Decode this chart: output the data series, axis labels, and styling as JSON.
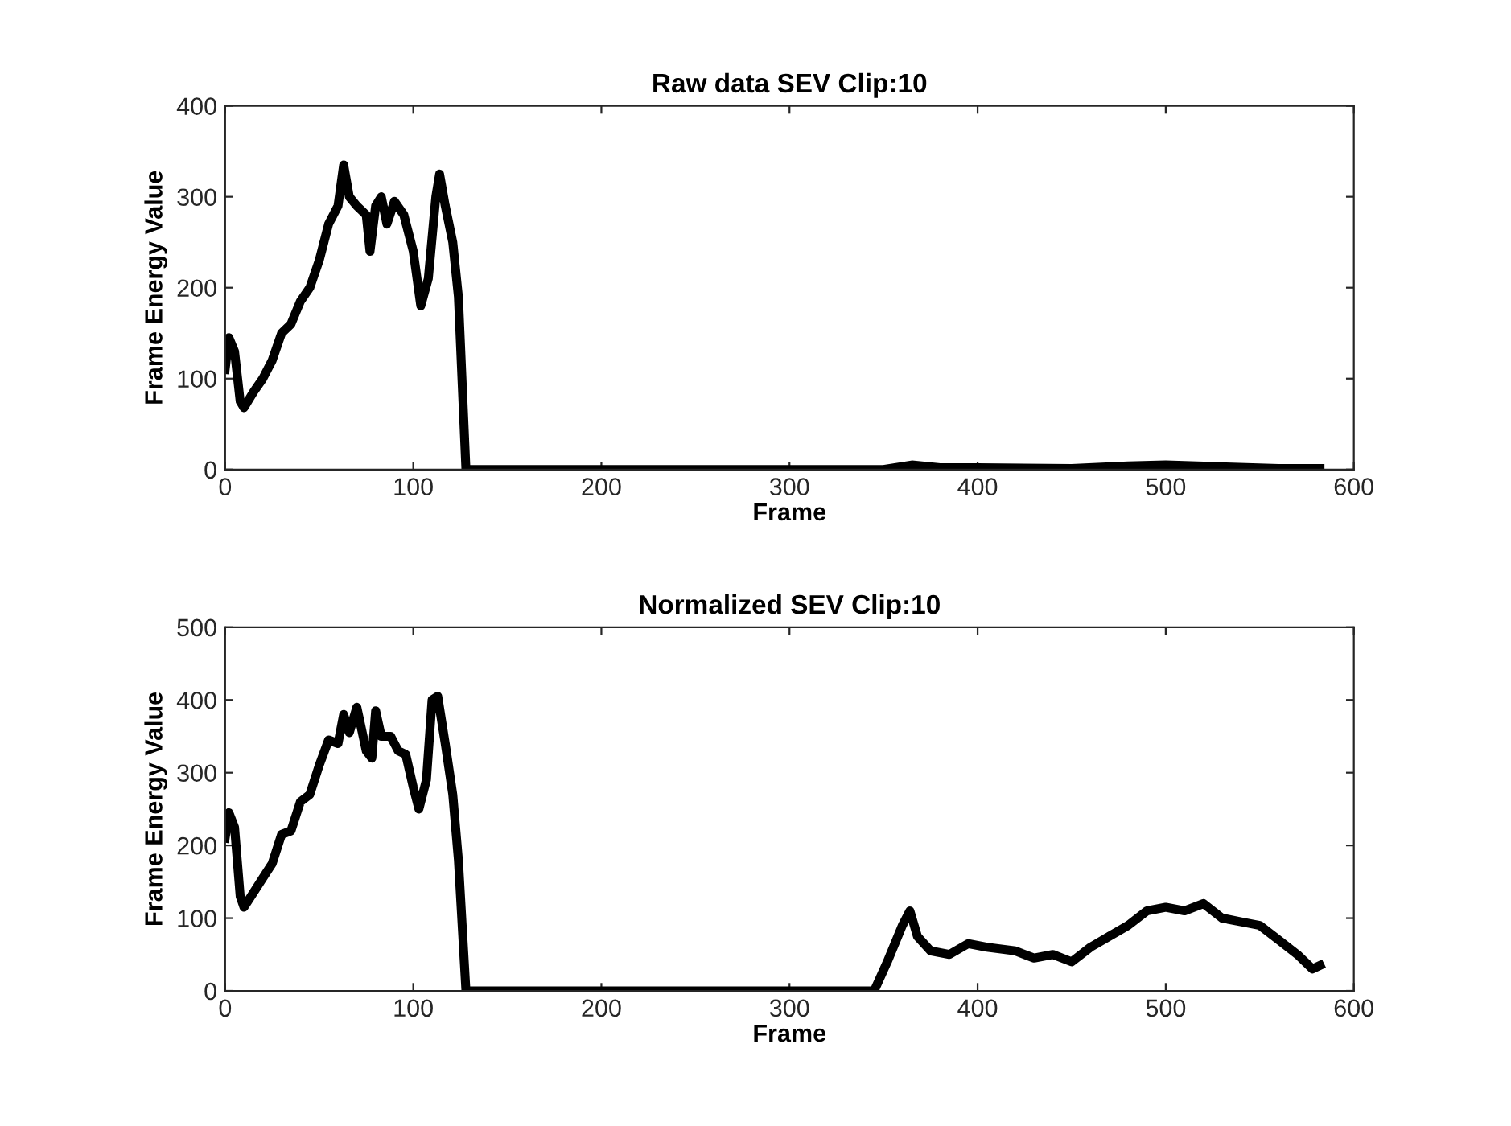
{
  "chart_data": [
    {
      "type": "line",
      "title": "Raw data SEV Clip:10",
      "xlabel": "Frame",
      "ylabel": "Frame Energy Value",
      "xlim": [
        0,
        600
      ],
      "xticks": [
        0,
        100,
        200,
        300,
        400,
        500,
        600
      ],
      "ylim": [
        0,
        400
      ],
      "yticks": [
        0,
        100,
        200,
        300,
        400
      ],
      "series": [
        {
          "color": "#000000",
          "x": [
            0,
            2,
            5,
            8,
            10,
            15,
            20,
            25,
            30,
            35,
            40,
            45,
            50,
            55,
            60,
            63,
            66,
            70,
            75,
            77,
            80,
            83,
            86,
            90,
            95,
            100,
            104,
            108,
            112,
            114,
            117,
            121,
            124,
            128,
            350,
            365,
            380,
            400,
            450,
            480,
            500,
            530,
            560,
            582
          ],
          "values": [
            110,
            145,
            130,
            75,
            68,
            85,
            100,
            120,
            150,
            160,
            185,
            200,
            230,
            270,
            290,
            335,
            300,
            290,
            280,
            240,
            290,
            300,
            270,
            295,
            280,
            240,
            180,
            210,
            300,
            325,
            290,
            250,
            190,
            0,
            0,
            5,
            2,
            2,
            1,
            4,
            5,
            3,
            1,
            1
          ]
        }
      ]
    },
    {
      "type": "line",
      "title": "Normalized SEV Clip:10",
      "xlabel": "Frame",
      "ylabel": "Frame Energy Value",
      "xlim": [
        0,
        600
      ],
      "xticks": [
        0,
        100,
        200,
        300,
        400,
        500,
        600
      ],
      "ylim": [
        0,
        500
      ],
      "yticks": [
        0,
        100,
        200,
        300,
        400,
        500
      ],
      "series": [
        {
          "color": "#000000",
          "x": [
            0,
            2,
            5,
            8,
            10,
            15,
            20,
            25,
            30,
            35,
            40,
            45,
            50,
            55,
            60,
            63,
            66,
            70,
            75,
            78,
            80,
            83,
            88,
            92,
            96,
            100,
            103,
            107,
            110,
            113,
            117,
            121,
            124,
            128,
            345,
            352,
            360,
            364,
            368,
            375,
            385,
            395,
            405,
            420,
            430,
            440,
            450,
            460,
            470,
            480,
            490,
            500,
            510,
            520,
            530,
            540,
            550,
            560,
            570,
            578,
            582
          ],
          "values": [
            210,
            245,
            225,
            130,
            115,
            135,
            155,
            175,
            215,
            220,
            260,
            270,
            310,
            345,
            340,
            380,
            355,
            390,
            330,
            320,
            385,
            350,
            350,
            330,
            325,
            280,
            250,
            290,
            400,
            405,
            340,
            270,
            180,
            0,
            0,
            40,
            90,
            110,
            75,
            55,
            50,
            65,
            60,
            55,
            45,
            50,
            40,
            60,
            75,
            90,
            110,
            115,
            110,
            120,
            100,
            95,
            90,
            70,
            50,
            30,
            35
          ]
        }
      ]
    }
  ]
}
